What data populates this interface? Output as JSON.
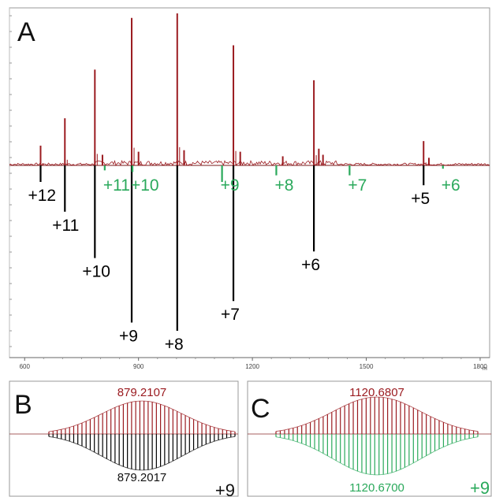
{
  "colors": {
    "experimental": "#9b1b20",
    "theoretical_black": "#000000",
    "theoretical_green": "#2aa95b",
    "frame": "#999999",
    "axis_text": "#444444"
  },
  "chart_data": [
    {
      "panel": "A",
      "type": "line",
      "title": "",
      "xlabel": "m",
      "ylabel": "",
      "xlim": [
        560,
        1825
      ],
      "x_ticks": [
        600,
        900,
        1200,
        1500,
        1800
      ],
      "grid": false,
      "series": [
        {
          "color": "experimental",
          "direction": "up",
          "peaks": [
            {
              "x": 642,
              "y": 0.13
            },
            {
              "x": 706,
              "y": 0.31
            },
            {
              "x": 785,
              "y": 0.63
            },
            {
              "x": 805,
              "y": 0.07
            },
            {
              "x": 882,
              "y": 0.97
            },
            {
              "x": 900,
              "y": 0.09
            },
            {
              "x": 1002,
              "y": 1.0
            },
            {
              "x": 1020,
              "y": 0.1
            },
            {
              "x": 1150,
              "y": 0.79
            },
            {
              "x": 1168,
              "y": 0.09
            },
            {
              "x": 1280,
              "y": 0.06
            },
            {
              "x": 1362,
              "y": 0.56
            },
            {
              "x": 1375,
              "y": 0.11
            },
            {
              "x": 1386,
              "y": 0.07
            },
            {
              "x": 1651,
              "y": 0.16
            },
            {
              "x": 1665,
              "y": 0.05
            }
          ]
        },
        {
          "color": "theoretical_black",
          "direction": "down",
          "peaks": [
            {
              "x": 642,
              "y": 0.1,
              "label": "+12"
            },
            {
              "x": 706,
              "y": 0.28,
              "label": "+11"
            },
            {
              "x": 785,
              "y": 0.56,
              "label": "+10"
            },
            {
              "x": 882,
              "y": 0.95,
              "label": "+9"
            },
            {
              "x": 1002,
              "y": 1.0,
              "label": "+8"
            },
            {
              "x": 1150,
              "y": 0.82,
              "label": "+7"
            },
            {
              "x": 1362,
              "y": 0.52,
              "label": "+6"
            },
            {
              "x": 1651,
              "y": 0.12,
              "label": "+5"
            }
          ]
        },
        {
          "color": "theoretical_green",
          "direction": "down",
          "peaks": [
            {
              "x": 811,
              "y": 0.03,
              "label": "+11"
            },
            {
              "x": 884,
              "y": 0.04,
              "label": "+10"
            },
            {
              "x": 1120,
              "y": 0.1,
              "label": "+9"
            },
            {
              "x": 1263,
              "y": 0.06,
              "label": "+8"
            },
            {
              "x": 1456,
              "y": 0.06,
              "label": "+7"
            },
            {
              "x": 1702,
              "y": 0.02,
              "label": "+6"
            }
          ]
        }
      ]
    },
    {
      "panel": "B",
      "type": "line",
      "top_label": "879.2107",
      "bottom_label": "879.2017",
      "charge_label": "+9",
      "center_mz": 879.21,
      "peak_spacing": 0.1111,
      "top_color": "experimental",
      "bottom_color": "theoretical_black"
    },
    {
      "panel": "C",
      "type": "line",
      "top_label": "1120.6807",
      "bottom_label": "1120.6700",
      "charge_label": "+9",
      "center_mz": 1120.68,
      "peak_spacing": 0.1111,
      "top_color": "experimental",
      "bottom_color": "theoretical_green"
    }
  ]
}
